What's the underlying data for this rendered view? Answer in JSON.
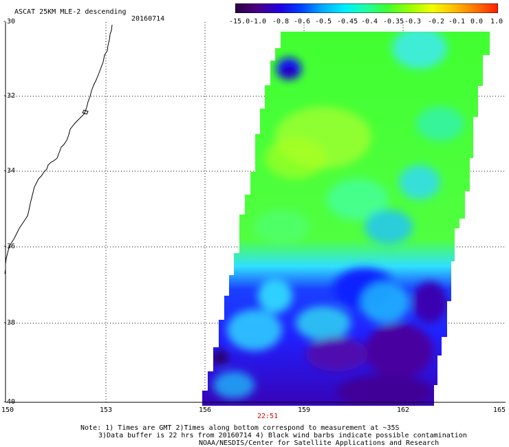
{
  "header": {
    "title": "ASCAT 25KM MLE-2 descending",
    "date": "20160714"
  },
  "colorbar": {
    "labels": [
      "-15.0",
      "-1.0",
      "-0.8",
      "-0.6",
      "-0.5",
      "-0.45",
      "-0.4",
      "-0.35",
      "-0.3",
      "-0.2",
      "-0.1",
      "0.0",
      "1.0"
    ],
    "colors": [
      "#2a0040",
      "#5a00a0",
      "#1a1aff",
      "#0080ff",
      "#00c8ff",
      "#00ffe8",
      "#40ff60",
      "#40ff20",
      "#a0ff00",
      "#e8ff00",
      "#ffc800",
      "#ff6000",
      "#ff2000"
    ]
  },
  "map": {
    "lat_labels": [
      "-30",
      "-32",
      "-34",
      "-36",
      "-38",
      "-40"
    ],
    "lon_labels": [
      "150",
      "153",
      "156",
      "159",
      "162",
      "165"
    ],
    "pass_time": "22:51"
  },
  "notes": {
    "line1": "Note: 1) Times are GMT 2)Times along bottom correspond to measurement at ~35S",
    "line2": "3)Data buffer is 22 hrs from 20160714 4) Black wind barbs indicate possible contamination",
    "line3": "NOAA/NESDIS/Center for Satellite Applications and Research"
  }
}
